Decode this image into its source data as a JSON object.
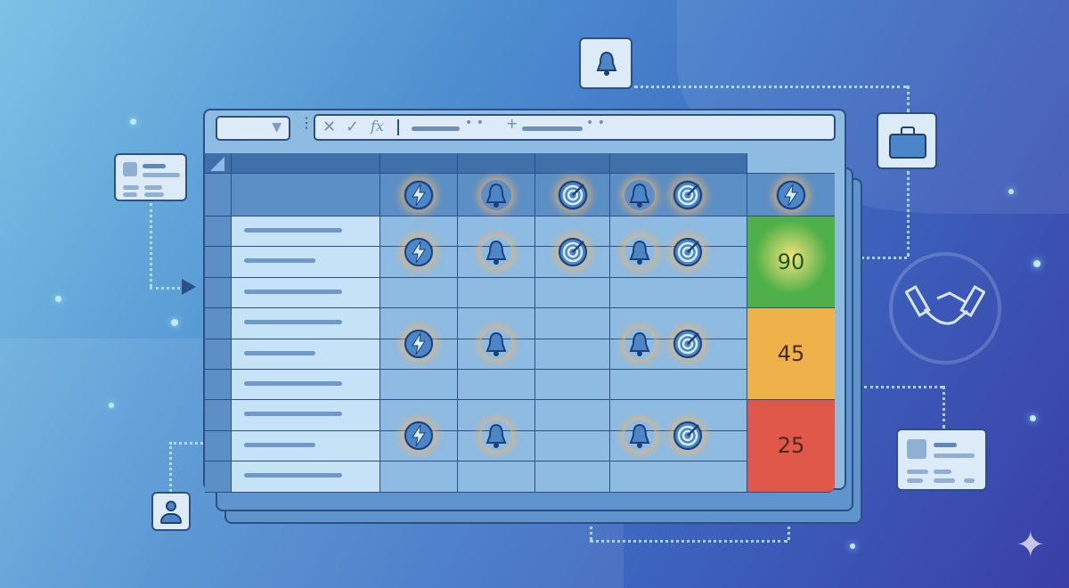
{
  "formula_bar": {
    "cancel_icon": "x-icon",
    "confirm_icon": "check-icon",
    "fx_label": "fx",
    "name_box_icon": "chevron-down-icon"
  },
  "grid": {
    "header_icons": [
      "bolt",
      "bell",
      "target",
      "bell-target",
      "bolt"
    ],
    "rows": [
      {
        "icons": [
          "bolt",
          "bell",
          "target",
          "bell-target"
        ],
        "score": "90",
        "score_color": "#4fb04a"
      },
      {
        "icons": [
          "bolt",
          "bell",
          "",
          "bell-target"
        ],
        "score": "45",
        "score_color": "#efb24a"
      },
      {
        "icons": [
          "bolt",
          "bell",
          "",
          "bell-target"
        ],
        "score": "25",
        "score_color": "#e0584a"
      }
    ]
  },
  "side_icons": [
    "bell-icon",
    "briefcase-icon",
    "handshake-icon",
    "user-icon",
    "contact-card-icon",
    "sparkle-icon"
  ],
  "colors": {
    "grid_line": "#2c4f86",
    "score_high": "#4fb04a",
    "score_mid": "#efb24a",
    "score_low": "#e0584a"
  }
}
